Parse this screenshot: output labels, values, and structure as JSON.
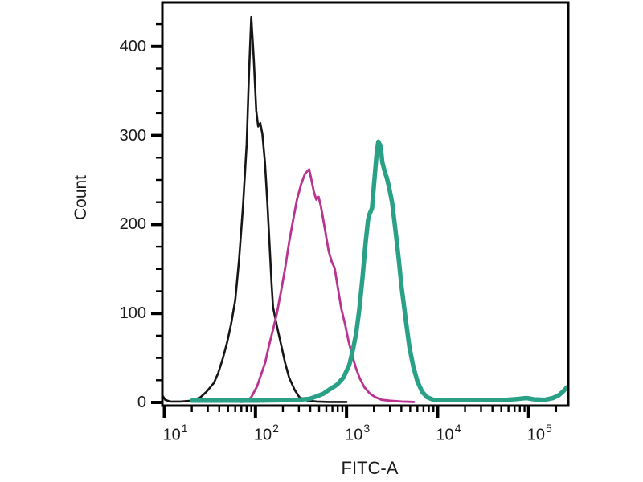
{
  "chart_data": {
    "type": "line",
    "subtype": "flow-cytometry-histogram-overlay",
    "title": "",
    "xlabel": "FITC-A",
    "ylabel": "Count",
    "x_scale": "log10",
    "grid": false,
    "legend": "none",
    "xlim": [
      9.5,
      272000
    ],
    "ylim": [
      0,
      450
    ],
    "x_ticks": [
      {
        "value": 10,
        "base": "10",
        "exp": "1"
      },
      {
        "value": 100,
        "base": "10",
        "exp": "2"
      },
      {
        "value": 1000,
        "base": "10",
        "exp": "3"
      },
      {
        "value": 10000,
        "base": "10",
        "exp": "4"
      },
      {
        "value": 100000,
        "base": "10",
        "exp": "5"
      }
    ],
    "x_minor_ticks": [
      20,
      30,
      40,
      50,
      60,
      70,
      80,
      90,
      200,
      300,
      400,
      500,
      600,
      700,
      800,
      900,
      2000,
      3000,
      4000,
      5000,
      6000,
      7000,
      8000,
      9000,
      20000,
      30000,
      40000,
      50000,
      60000,
      70000,
      80000,
      90000,
      200000
    ],
    "y_ticks": [
      0,
      100,
      200,
      300,
      400
    ],
    "y_minor_ticks": [
      25,
      50,
      75,
      125,
      150,
      175,
      225,
      250,
      275,
      325,
      350,
      375,
      425
    ],
    "axis_color": "#000000",
    "series": [
      {
        "name": "black",
        "color": "#161616",
        "stroke_width": 2.6,
        "peak": {
          "x": 90,
          "count": 433
        },
        "points": [
          [
            9.5,
            8
          ],
          [
            10.2,
            3
          ],
          [
            11.5,
            1
          ],
          [
            15,
            1
          ],
          [
            20,
            2
          ],
          [
            25,
            6
          ],
          [
            29,
            12
          ],
          [
            35,
            22
          ],
          [
            39,
            33
          ],
          [
            44,
            50
          ],
          [
            49,
            68
          ],
          [
            54,
            88
          ],
          [
            60,
            115
          ],
          [
            66,
            160
          ],
          [
            73,
            220
          ],
          [
            80,
            290
          ],
          [
            85,
            370
          ],
          [
            90,
            433
          ],
          [
            96,
            385
          ],
          [
            102,
            328
          ],
          [
            107,
            310
          ],
          [
            113,
            314
          ],
          [
            119,
            302
          ],
          [
            127,
            270
          ],
          [
            135,
            225
          ],
          [
            144,
            170
          ],
          [
            150,
            135
          ],
          [
            156,
            107
          ],
          [
            172,
            86
          ],
          [
            191,
            65
          ],
          [
            211,
            45
          ],
          [
            234,
            28
          ],
          [
            270,
            14
          ],
          [
            304,
            6
          ],
          [
            373,
            2
          ],
          [
            476,
            1
          ],
          [
            650,
            0.5
          ],
          [
            1000,
            0.5
          ]
        ]
      },
      {
        "name": "magenta",
        "color": "#b93390",
        "stroke_width": 2.8,
        "peak": {
          "x": 388,
          "count": 262
        },
        "points": [
          [
            69,
            0.5
          ],
          [
            80,
            1
          ],
          [
            90,
            6
          ],
          [
            104,
            18
          ],
          [
            115,
            31
          ],
          [
            128,
            45
          ],
          [
            141,
            64
          ],
          [
            156,
            82
          ],
          [
            172,
            100
          ],
          [
            191,
            125
          ],
          [
            211,
            150
          ],
          [
            234,
            180
          ],
          [
            259,
            205
          ],
          [
            286,
            228
          ],
          [
            317,
            245
          ],
          [
            350,
            257
          ],
          [
            388,
            262
          ],
          [
            412,
            250
          ],
          [
            437,
            237
          ],
          [
            465,
            228
          ],
          [
            494,
            231
          ],
          [
            524,
            220
          ],
          [
            578,
            195
          ],
          [
            637,
            170
          ],
          [
            687,
            158
          ],
          [
            741,
            151
          ],
          [
            799,
            130
          ],
          [
            877,
            105
          ],
          [
            963,
            88
          ],
          [
            1058,
            68
          ],
          [
            1162,
            52
          ],
          [
            1276,
            38
          ],
          [
            1401,
            27
          ],
          [
            1573,
            17
          ],
          [
            1805,
            10
          ],
          [
            2071,
            6
          ],
          [
            2428,
            3
          ],
          [
            2979,
            2
          ],
          [
            4042,
            1
          ],
          [
            5484,
            0.5
          ]
        ]
      },
      {
        "name": "teal",
        "color": "#2aa187",
        "stroke_width": 5.5,
        "peak": {
          "x": 2233,
          "count": 293
        },
        "points": [
          [
            20,
            2
          ],
          [
            46,
            2
          ],
          [
            104,
            2
          ],
          [
            191,
            2.5
          ],
          [
            286,
            3
          ],
          [
            388,
            4
          ],
          [
            476,
            7
          ],
          [
            561,
            10
          ],
          [
            637,
            14
          ],
          [
            787,
            20
          ],
          [
            924,
            28
          ],
          [
            1070,
            42
          ],
          [
            1181,
            60
          ],
          [
            1278,
            78
          ],
          [
            1384,
            105
          ],
          [
            1497,
            140
          ],
          [
            1621,
            180
          ],
          [
            1722,
            205
          ],
          [
            1793,
            212
          ],
          [
            1904,
            218
          ],
          [
            2021,
            250
          ],
          [
            2146,
            280
          ],
          [
            2233,
            293
          ],
          [
            2369,
            288
          ],
          [
            2466,
            270
          ],
          [
            2617,
            260
          ],
          [
            2777,
            252
          ],
          [
            2917,
            243
          ],
          [
            3160,
            225
          ],
          [
            3423,
            196
          ],
          [
            3709,
            165
          ],
          [
            4018,
            130
          ],
          [
            4440,
            95
          ],
          [
            4906,
            62
          ],
          [
            5422,
            40
          ],
          [
            5992,
            24
          ],
          [
            6766,
            12
          ],
          [
            7641,
            6
          ],
          [
            8958,
            3
          ],
          [
            12168,
            2.5
          ],
          [
            18279,
            3
          ],
          [
            30538,
            2.5
          ],
          [
            51018,
            2.5
          ],
          [
            76898,
            4
          ],
          [
            94072,
            5
          ],
          [
            115090,
            3.5
          ],
          [
            150370,
            3
          ],
          [
            184900,
            5
          ],
          [
            213290,
            8
          ],
          [
            236850,
            12
          ],
          [
            257170,
            16
          ],
          [
            272000,
            18
          ]
        ]
      }
    ]
  }
}
